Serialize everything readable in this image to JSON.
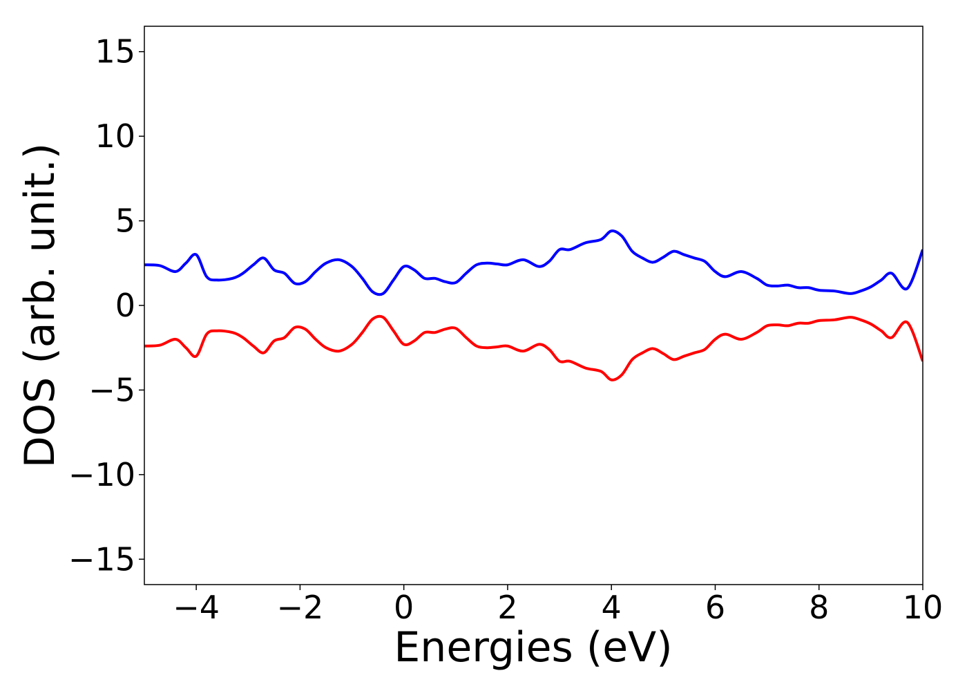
{
  "chart_data": {
    "type": "line",
    "title": "",
    "xlabel": "Energies (eV)",
    "ylabel": "DOS (arb. unit.)",
    "xlim": [
      -5,
      10
    ],
    "ylim": [
      -16.5,
      16.5
    ],
    "xticks": [
      -4,
      -2,
      0,
      2,
      4,
      6,
      8,
      10
    ],
    "xtick_labels": [
      "−4",
      "−2",
      "0",
      "2",
      "4",
      "6",
      "8",
      "10"
    ],
    "yticks": [
      -15,
      -10,
      -5,
      0,
      5,
      10,
      15
    ],
    "ytick_labels": [
      "−15",
      "−10",
      "−5",
      "0",
      "5",
      "10",
      "15"
    ],
    "grid": false,
    "legend": "none",
    "series": [
      {
        "color": "#0000ff",
        "x": [
          -5,
          -4.7,
          -4.4,
          -4.2,
          -4.0,
          -3.8,
          -3.6,
          -3.3,
          -3.1,
          -2.9,
          -2.7,
          -2.5,
          -2.3,
          -2.1,
          -1.9,
          -1.7,
          -1.5,
          -1.25,
          -1.0,
          -0.8,
          -0.6,
          -0.4,
          -0.2,
          0.0,
          0.2,
          0.4,
          0.6,
          0.8,
          1.0,
          1.2,
          1.4,
          1.6,
          1.8,
          2.0,
          2.3,
          2.6,
          2.8,
          3.0,
          3.2,
          3.5,
          3.8,
          4.0,
          4.2,
          4.4,
          4.6,
          4.8,
          5.0,
          5.2,
          5.4,
          5.6,
          5.8,
          6.0,
          6.2,
          6.5,
          6.8,
          7.0,
          7.2,
          7.4,
          7.6,
          7.8,
          8.0,
          8.3,
          8.6,
          8.8,
          9.0,
          9.2,
          9.4,
          9.7,
          10.0
        ],
        "y": [
          2.4,
          2.35,
          2.0,
          2.5,
          3.0,
          1.7,
          1.5,
          1.6,
          1.9,
          2.4,
          2.8,
          2.1,
          1.9,
          1.3,
          1.4,
          2.0,
          2.5,
          2.7,
          2.3,
          1.6,
          0.8,
          0.7,
          1.5,
          2.3,
          2.1,
          1.6,
          1.6,
          1.4,
          1.35,
          1.9,
          2.4,
          2.5,
          2.45,
          2.4,
          2.7,
          2.3,
          2.6,
          3.3,
          3.3,
          3.7,
          3.9,
          4.4,
          4.1,
          3.2,
          2.8,
          2.55,
          2.85,
          3.2,
          3.0,
          2.8,
          2.6,
          2.0,
          1.7,
          2.0,
          1.6,
          1.2,
          1.15,
          1.2,
          1.05,
          1.05,
          0.9,
          0.85,
          0.7,
          0.85,
          1.1,
          1.5,
          1.9,
          1.0,
          3.3
        ]
      },
      {
        "color": "#ff0000",
        "x": [
          -5,
          -4.7,
          -4.4,
          -4.2,
          -4.0,
          -3.8,
          -3.6,
          -3.3,
          -3.1,
          -2.9,
          -2.7,
          -2.5,
          -2.3,
          -2.1,
          -1.9,
          -1.7,
          -1.5,
          -1.25,
          -1.0,
          -0.8,
          -0.6,
          -0.4,
          -0.2,
          0.0,
          0.2,
          0.4,
          0.6,
          0.8,
          1.0,
          1.2,
          1.4,
          1.6,
          1.8,
          2.0,
          2.3,
          2.6,
          2.8,
          3.0,
          3.2,
          3.5,
          3.8,
          4.0,
          4.2,
          4.4,
          4.6,
          4.8,
          5.0,
          5.2,
          5.4,
          5.6,
          5.8,
          6.0,
          6.2,
          6.5,
          6.8,
          7.0,
          7.2,
          7.4,
          7.6,
          7.8,
          8.0,
          8.3,
          8.6,
          8.8,
          9.0,
          9.2,
          9.4,
          9.7,
          10.0
        ],
        "y": [
          -2.4,
          -2.35,
          -2.0,
          -2.5,
          -3.0,
          -1.7,
          -1.5,
          -1.6,
          -1.9,
          -2.4,
          -2.8,
          -2.1,
          -1.9,
          -1.3,
          -1.4,
          -2.0,
          -2.5,
          -2.7,
          -2.3,
          -1.6,
          -0.8,
          -0.7,
          -1.5,
          -2.3,
          -2.1,
          -1.6,
          -1.6,
          -1.4,
          -1.35,
          -1.9,
          -2.4,
          -2.5,
          -2.45,
          -2.4,
          -2.7,
          -2.3,
          -2.6,
          -3.3,
          -3.3,
          -3.7,
          -3.9,
          -4.4,
          -4.1,
          -3.2,
          -2.8,
          -2.55,
          -2.85,
          -3.2,
          -3.0,
          -2.8,
          -2.6,
          -2.0,
          -1.7,
          -2.0,
          -1.6,
          -1.2,
          -1.15,
          -1.2,
          -1.05,
          -1.05,
          -0.9,
          -0.85,
          -0.7,
          -0.85,
          -1.1,
          -1.5,
          -1.9,
          -1.0,
          -3.3
        ]
      }
    ]
  }
}
